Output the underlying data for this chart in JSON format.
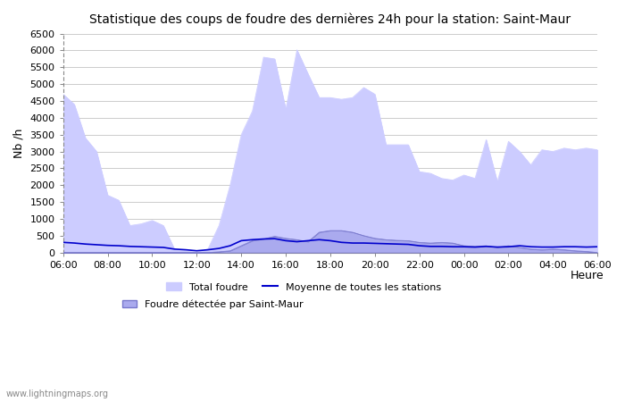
{
  "title": "Statistique des coups de foudre des dernières 24h pour la station: Saint-Maur",
  "xlabel": "Heure",
  "ylabel": "Nb /h",
  "ylim": [
    0,
    6500
  ],
  "yticks": [
    0,
    500,
    1000,
    1500,
    2000,
    2500,
    3000,
    3500,
    4000,
    4500,
    5000,
    5500,
    6000,
    6500
  ],
  "xtick_labels": [
    "06:00",
    "08:00",
    "10:00",
    "12:00",
    "14:00",
    "16:00",
    "18:00",
    "20:00",
    "22:00",
    "00:00",
    "02:00",
    "04:00",
    "06:00"
  ],
  "watermark": "www.lightningmaps.org",
  "bg_color": "#ffffff",
  "plot_bg_color": "#ffffff",
  "grid_color": "#cccccc",
  "total_foudre_color": "#ccccff",
  "total_foudre_edge": "#aaaadd",
  "station_color": "#aaaaee",
  "station_edge": "#7777cc",
  "moyenne_color": "#0000cc",
  "x_hours": [
    0,
    1,
    2,
    3,
    4,
    5,
    6,
    7,
    8,
    9,
    10,
    11,
    12,
    13,
    14,
    15,
    16,
    17,
    18,
    19,
    20,
    21,
    22,
    23,
    24,
    25,
    26,
    27,
    28,
    29,
    30,
    31,
    32,
    33,
    34,
    35,
    36,
    37,
    38,
    39,
    40,
    41,
    42,
    43,
    44,
    45,
    46,
    47,
    48
  ],
  "total_foudre": [
    4700,
    4400,
    3400,
    3000,
    1700,
    1550,
    800,
    850,
    950,
    800,
    100,
    50,
    0,
    100,
    800,
    2000,
    3500,
    4200,
    5800,
    5750,
    4250,
    6020,
    5300,
    4600,
    4600,
    4550,
    4600,
    4900,
    4700,
    3200,
    3200,
    3200,
    2400,
    2350,
    2200,
    2150,
    2300,
    2200,
    3350,
    2100,
    3300,
    3000,
    2600,
    3050,
    3000,
    3100,
    3050,
    3100,
    3050
  ],
  "station_foudre": [
    0,
    0,
    0,
    0,
    0,
    0,
    0,
    0,
    0,
    0,
    0,
    0,
    0,
    0,
    20,
    50,
    200,
    350,
    400,
    480,
    420,
    380,
    320,
    600,
    650,
    650,
    600,
    500,
    420,
    380,
    360,
    350,
    300,
    280,
    300,
    280,
    200,
    180,
    200,
    150,
    200,
    150,
    100,
    80,
    100,
    80,
    50,
    30,
    0
  ],
  "moyenne": [
    300,
    280,
    250,
    230,
    210,
    200,
    180,
    170,
    160,
    150,
    100,
    80,
    50,
    80,
    120,
    200,
    350,
    380,
    400,
    410,
    350,
    320,
    350,
    380,
    350,
    300,
    280,
    280,
    270,
    260,
    250,
    240,
    200,
    180,
    180,
    170,
    170,
    160,
    180,
    160,
    170,
    200,
    170,
    160,
    160,
    170,
    170,
    160,
    170
  ]
}
